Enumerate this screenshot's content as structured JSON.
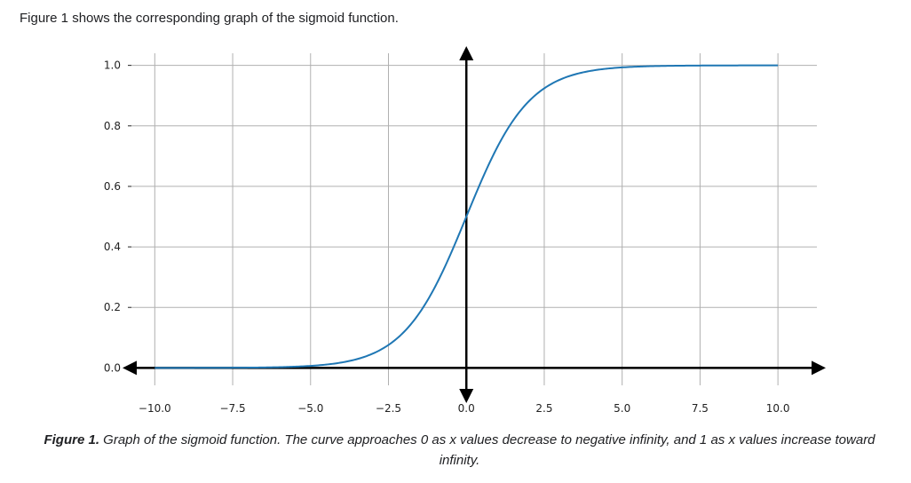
{
  "intro_text": "Figure 1 shows the corresponding graph of the sigmoid function.",
  "caption": {
    "label": "Figure 1.",
    "text": " Graph of the sigmoid function. The curve approaches 0 as x values decrease to negative infinity, and 1 as x values increase toward infinity."
  },
  "colors": {
    "curve": "#1f77b4",
    "axes": "#000000",
    "grid": "#b0b0b0"
  },
  "chart_data": {
    "type": "line",
    "title": "",
    "xlabel": "",
    "ylabel": "",
    "xlim": [
      -10.75,
      11.25
    ],
    "ylim": [
      -0.04,
      1.04
    ],
    "grid": true,
    "x_ticks": [
      -10.0,
      -7.5,
      -5.0,
      -2.5,
      0.0,
      2.5,
      5.0,
      7.5,
      10.0
    ],
    "x_tick_labels": [
      "−10.0",
      "−7.5",
      "−5.0",
      "−2.5",
      "0.0",
      "2.5",
      "5.0",
      "7.5",
      "10.0"
    ],
    "y_ticks": [
      0.0,
      0.2,
      0.4,
      0.6,
      0.8,
      1.0
    ],
    "y_tick_labels": [
      "0.0",
      "0.2",
      "0.4",
      "0.6",
      "0.8",
      "1.0"
    ],
    "series": [
      {
        "function": "sigmoid",
        "x": [
          -10,
          -8,
          -6,
          -5,
          -4,
          -3,
          -2.5,
          -2,
          -1.5,
          -1,
          -0.5,
          0,
          0.5,
          1,
          1.5,
          2,
          2.5,
          3,
          4,
          5,
          6,
          8,
          10
        ],
        "y": [
          4.54e-05,
          0.000335,
          0.00247,
          0.00669,
          0.018,
          0.0474,
          0.0759,
          0.1192,
          0.1824,
          0.2689,
          0.3775,
          0.5,
          0.6225,
          0.7311,
          0.8176,
          0.8808,
          0.9241,
          0.9526,
          0.982,
          0.9933,
          0.9975,
          0.9997,
          0.99995
        ]
      }
    ]
  }
}
